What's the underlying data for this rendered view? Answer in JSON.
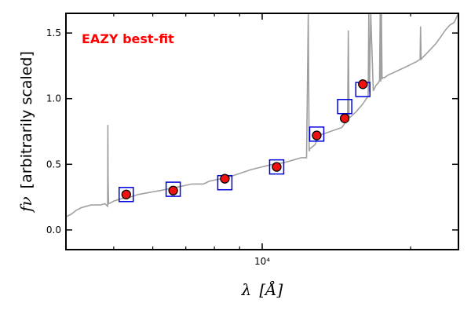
{
  "chart_data": {
    "type": "scatter",
    "title": "",
    "annotation": "EAZY best-fit",
    "annotation_color": "#ff0000",
    "xlabel_symbol": "λ",
    "xlabel_unit": "[Å]",
    "ylabel_symbol": "fν",
    "ylabel_text": "[arbitrarily scaled]",
    "x_scale": "log",
    "xlim": [
      4000,
      25000
    ],
    "ylim": [
      -0.15,
      1.65
    ],
    "x_major_ticks": [
      {
        "value": 10000,
        "label": "10⁴"
      }
    ],
    "x_minor_ticks": [
      5000,
      6000,
      7000,
      8000,
      9000,
      20000
    ],
    "y_ticks": [
      {
        "value": 0.0,
        "label": "0.0"
      },
      {
        "value": 0.5,
        "label": "0.5"
      },
      {
        "value": 1.0,
        "label": "1.0"
      },
      {
        "value": 1.5,
        "label": "1.5"
      }
    ],
    "grid": false,
    "series": [
      {
        "role": "template",
        "style": "line",
        "color": "#a0a0a0",
        "x": [
          4000,
          4100,
          4200,
          4300,
          4400,
          4500,
          4600,
          4700,
          4800,
          4860,
          4865,
          4870,
          4880,
          4950,
          5000,
          5200,
          5400,
          5600,
          5800,
          6000,
          6200,
          6400,
          6600,
          6800,
          7000,
          7200,
          7400,
          7600,
          7800,
          8000,
          8500,
          9000,
          9500,
          10000,
          10500,
          11000,
          11500,
          12000,
          12300,
          12400,
          12450,
          12500,
          12600,
          12800,
          13000,
          13500,
          14000,
          14500,
          14900,
          14950,
          15000,
          15100,
          15500,
          16000,
          16400,
          16450,
          16500,
          16600,
          16800,
          17000,
          17200,
          17300,
          17350,
          17400,
          17450,
          17500,
          17550,
          17600,
          17700,
          18000,
          18500,
          19000,
          19500,
          20000,
          20500,
          20900,
          20950,
          21000,
          21100,
          21500,
          22000,
          22500,
          23000,
          23500,
          24000,
          24500,
          25000
        ],
        "y": [
          0.1,
          0.12,
          0.15,
          0.17,
          0.18,
          0.19,
          0.19,
          0.19,
          0.2,
          0.18,
          0.8,
          0.4,
          0.2,
          0.21,
          0.22,
          0.24,
          0.25,
          0.27,
          0.28,
          0.29,
          0.3,
          0.31,
          0.32,
          0.33,
          0.34,
          0.35,
          0.35,
          0.35,
          0.37,
          0.38,
          0.4,
          0.43,
          0.46,
          0.48,
          0.5,
          0.51,
          0.53,
          0.55,
          0.55,
          1.65,
          0.6,
          0.62,
          0.63,
          0.65,
          0.72,
          0.74,
          0.76,
          0.78,
          0.84,
          1.52,
          0.86,
          0.86,
          0.9,
          0.96,
          1.02,
          1.65,
          1.05,
          1.65,
          1.06,
          1.1,
          1.12,
          1.14,
          1.65,
          1.13,
          1.65,
          1.15,
          1.16,
          1.16,
          1.16,
          1.18,
          1.2,
          1.22,
          1.24,
          1.26,
          1.28,
          1.3,
          1.55,
          1.3,
          1.31,
          1.34,
          1.38,
          1.42,
          1.47,
          1.52,
          1.56,
          1.58,
          1.65
        ]
      },
      {
        "role": "model photometry",
        "style": "open-square",
        "color": "#0000dd",
        "x": [
          5300,
          6600,
          8400,
          10700,
          12900,
          14700,
          16000
        ],
        "y": [
          0.27,
          0.31,
          0.36,
          0.48,
          0.73,
          0.94,
          1.07
        ]
      },
      {
        "role": "observed photometry",
        "style": "filled-circle",
        "color": "#ee1111",
        "edgecolor": "#000000",
        "x": [
          5300,
          6600,
          8400,
          10700,
          12900,
          14700,
          16000
        ],
        "y": [
          0.27,
          0.3,
          0.39,
          0.48,
          0.72,
          0.85,
          1.11
        ],
        "yerr": [
          0.035,
          0.02,
          0.02,
          0.02,
          0.03,
          0.03,
          0.02
        ]
      }
    ]
  }
}
